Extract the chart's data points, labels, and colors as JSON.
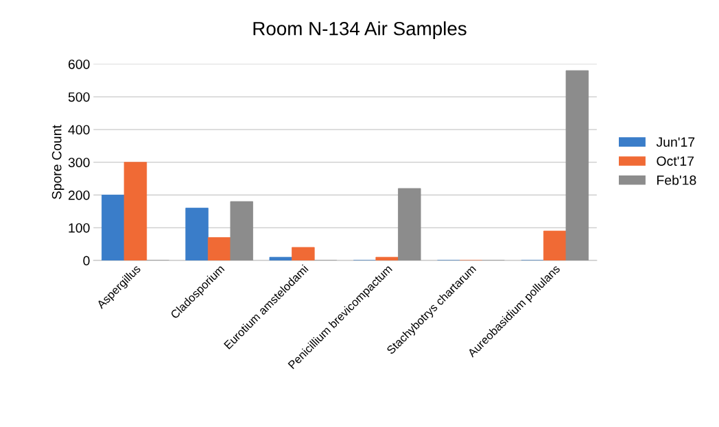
{
  "chart_data": {
    "type": "bar",
    "title": "Room N-134 Air Samples",
    "ylabel": "Spore Count",
    "categories": [
      "Aspergillus",
      "Cladosporium",
      "Eurotium amstelodami",
      "Penicillium brevicompactum",
      "Stachybotrys chartarum",
      "Aureobasidium pollulans"
    ],
    "series": [
      {
        "name": "Jun'17",
        "color": "#3a7dc9",
        "values": [
          200,
          160,
          10,
          0,
          0,
          0
        ]
      },
      {
        "name": "Oct'17",
        "color": "#f06a35",
        "values": [
          300,
          70,
          40,
          10,
          0,
          90
        ]
      },
      {
        "name": "Feb'18",
        "color": "#8c8c8c",
        "values": [
          0,
          180,
          0,
          220,
          0,
          580
        ]
      }
    ],
    "ylim": [
      0,
      600
    ],
    "yticks": [
      0,
      100,
      200,
      300,
      400,
      500,
      600
    ],
    "grid": "y",
    "legend": "right"
  }
}
